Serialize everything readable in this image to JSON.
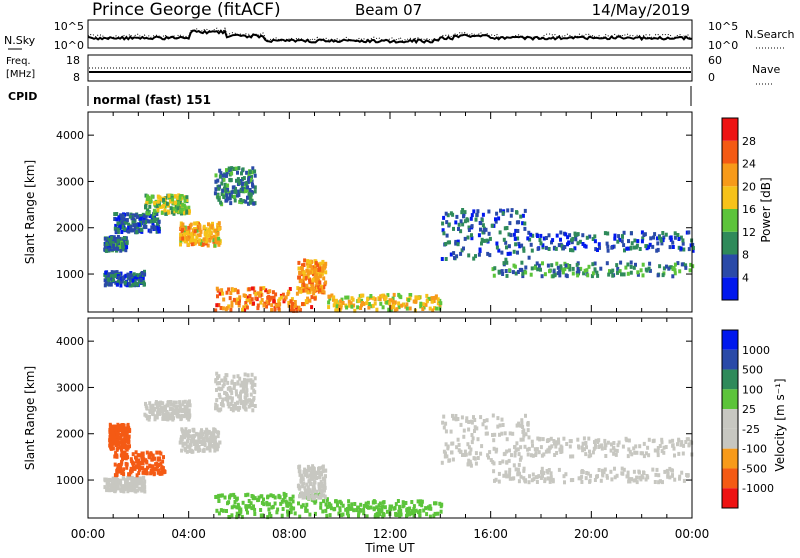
{
  "header": {
    "station": "Prince George (fitACF)",
    "beam": "Beam 07",
    "date": "14/May/2019"
  },
  "top_panels": {
    "nsky_label": "N.Sky",
    "nsearch_label": "N.Search",
    "nsky_ticks": [
      "10^5",
      "10^0"
    ],
    "nsearch_ticks": [
      "10^5",
      "10^0"
    ],
    "freq_label_1": "Freq.",
    "freq_label_2": "[MHz]",
    "freq_ticks": [
      "18",
      "8"
    ],
    "nave_label": "Nave",
    "nave_ticks": [
      "60",
      "0"
    ],
    "cpid_label": "CPID",
    "cpid_value": "normal (fast) 151"
  },
  "colors": {
    "power": [
      "#0018ee",
      "#2a4aa8",
      "#2f8a5a",
      "#5cc43a",
      "#f6c21a",
      "#f79a1a",
      "#f45a14",
      "#ee1212"
    ],
    "velocity": [
      "#ee1212",
      "#f45a14",
      "#f79a1a",
      "#c7c7c1",
      "#c7c7c1",
      "#5cc43a",
      "#2f8a5a",
      "#2a4aa8",
      "#0018ee"
    ]
  },
  "chart_data": [
    {
      "type": "heatmap",
      "name": "power",
      "ylabel": "Slant Range [km]",
      "xlabel": "",
      "xlim": [
        "00:00",
        "24:00"
      ],
      "ylim": [
        180,
        4500
      ],
      "x_ticks": [
        "00:00",
        "04:00",
        "08:00",
        "12:00",
        "16:00",
        "20:00",
        "00:00"
      ],
      "y_ticks": [
        1000,
        2000,
        3000,
        4000
      ],
      "colorbar_label": "Power [dB]",
      "colorbar_ticks": [
        "28",
        "24",
        "20",
        "16",
        "12",
        "8",
        "4"
      ],
      "colorbar_range": [
        0,
        32
      ],
      "regions": [
        {
          "t0": 0.6,
          "t1": 2.2,
          "r0": 750,
          "r1": 1050,
          "value": 6
        },
        {
          "t0": 0.6,
          "t1": 1.5,
          "r0": 1500,
          "r1": 1800,
          "value": 8
        },
        {
          "t0": 1.0,
          "t1": 2.8,
          "r0": 1900,
          "r1": 2300,
          "value": 6
        },
        {
          "t0": 2.2,
          "t1": 4.0,
          "r0": 2300,
          "r1": 2700,
          "value": 14
        },
        {
          "t0": 3.6,
          "t1": 5.2,
          "r0": 1600,
          "r1": 2100,
          "value": 20
        },
        {
          "t0": 5.0,
          "t1": 6.6,
          "r0": 2500,
          "r1": 3300,
          "value": 9
        },
        {
          "t0": 5.0,
          "t1": 9.0,
          "r0": 200,
          "r1": 700,
          "value": 24
        },
        {
          "t0": 8.3,
          "t1": 9.4,
          "r0": 600,
          "r1": 1300,
          "value": 22
        },
        {
          "t0": 9.5,
          "t1": 14.0,
          "r0": 200,
          "r1": 550,
          "value": 18
        },
        {
          "t0": 14.0,
          "t1": 17.5,
          "r0": 1300,
          "r1": 2400,
          "value": 7
        },
        {
          "t0": 16.0,
          "t1": 24.0,
          "r0": 950,
          "r1": 1250,
          "value": 10
        },
        {
          "t0": 17.5,
          "t1": 24.0,
          "r0": 1500,
          "r1": 1900,
          "value": 6
        }
      ]
    },
    {
      "type": "heatmap",
      "name": "velocity",
      "ylabel": "Slant Range [km]",
      "xlabel": "Time UT",
      "xlim": [
        "00:00",
        "24:00"
      ],
      "ylim": [
        180,
        4500
      ],
      "x_ticks": [
        "00:00",
        "04:00",
        "08:00",
        "12:00",
        "16:00",
        "20:00",
        "00:00"
      ],
      "y_ticks": [
        1000,
        2000,
        3000,
        4000
      ],
      "colorbar_label": "Velocity [m s⁻¹]",
      "colorbar_ticks": [
        "1000",
        "500",
        "100",
        "25",
        "-25",
        "-100",
        "-500",
        "-1000"
      ],
      "regions": [
        {
          "t0": 0.6,
          "t1": 2.2,
          "r0": 750,
          "r1": 1050,
          "value": 0
        },
        {
          "t0": 1.0,
          "t1": 3.0,
          "r0": 1100,
          "r1": 1600,
          "value": -300
        },
        {
          "t0": 0.8,
          "t1": 1.6,
          "r0": 1650,
          "r1": 2200,
          "value": -200
        },
        {
          "t0": 2.2,
          "t1": 4.0,
          "r0": 2300,
          "r1": 2700,
          "value": 0
        },
        {
          "t0": 3.6,
          "t1": 5.2,
          "r0": 1600,
          "r1": 2100,
          "value": 0
        },
        {
          "t0": 5.0,
          "t1": 6.6,
          "r0": 2500,
          "r1": 3300,
          "value": 0
        },
        {
          "t0": 5.0,
          "t1": 9.5,
          "r0": 200,
          "r1": 700,
          "value": 50
        },
        {
          "t0": 8.3,
          "t1": 9.4,
          "r0": 600,
          "r1": 1300,
          "value": 0
        },
        {
          "t0": 9.5,
          "t1": 14.0,
          "r0": 200,
          "r1": 550,
          "value": 60
        },
        {
          "t0": 14.0,
          "t1": 17.5,
          "r0": 1300,
          "r1": 2400,
          "value": 0
        },
        {
          "t0": 16.0,
          "t1": 24.0,
          "r0": 950,
          "r1": 1250,
          "value": 0
        },
        {
          "t0": 17.5,
          "t1": 24.0,
          "r0": 1500,
          "r1": 1900,
          "value": 0
        }
      ]
    }
  ]
}
